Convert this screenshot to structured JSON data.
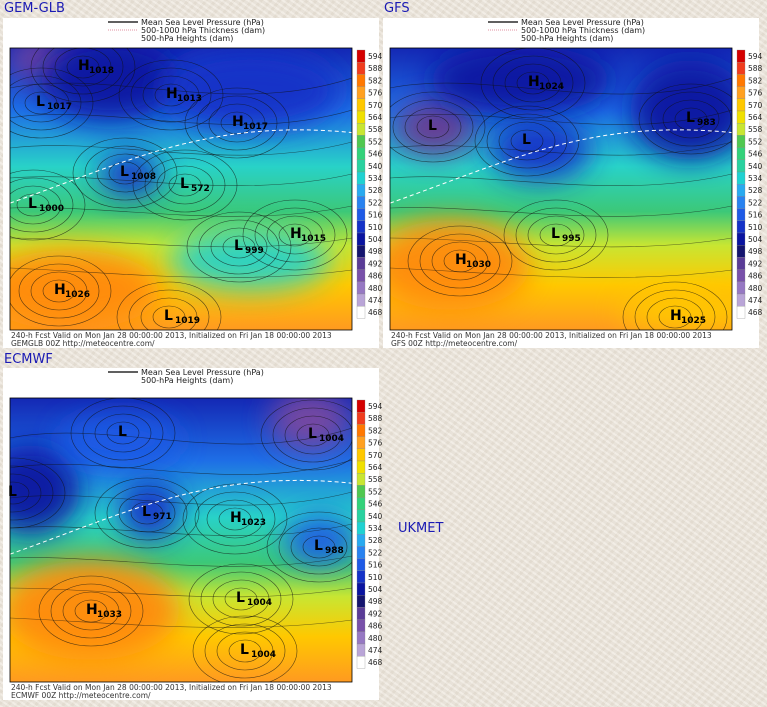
{
  "panels": [
    {
      "title": "GEM-GLB",
      "legend": [
        "Mean Sea Level Pressure (hPa)",
        "500-1000 hPa Thickness (dam)",
        "500-hPa Heights (dam)"
      ],
      "colorbar": [
        594,
        588,
        582,
        576,
        570,
        564,
        558,
        552,
        546,
        540,
        534,
        528,
        522,
        516,
        510,
        504,
        498,
        492,
        486,
        480,
        474,
        468
      ],
      "footer": [
        "240-h Fcst Valid on Mon Jan 28 00:00:00 2013, Initialized on Fri Jan 18 00:00:00 2013",
        "GEMGLB 00Z http://meteocentre.com/"
      ],
      "centers": [
        {
          "letter": "H",
          "value": 1018
        },
        {
          "letter": "L",
          "value": 1017
        },
        {
          "letter": "H",
          "value": 1013
        },
        {
          "letter": "H",
          "value": 1017
        },
        {
          "letter": "L",
          "value": 1008
        },
        {
          "letter": "L",
          "value": 572
        },
        {
          "letter": "L",
          "value": 1000
        },
        {
          "letter": "L",
          "value": 999
        },
        {
          "letter": "H",
          "value": 1015
        },
        {
          "letter": "H",
          "value": 1026
        },
        {
          "letter": "L",
          "value": 1019
        }
      ]
    },
    {
      "title": "GFS",
      "legend": [
        "Mean Sea Level Pressure (hPa)",
        "500-1000 hPa Thickness (dam)",
        "500-hPa Heights (dam)"
      ],
      "colorbar": [
        594,
        588,
        582,
        576,
        570,
        564,
        558,
        552,
        546,
        540,
        534,
        528,
        522,
        516,
        510,
        504,
        498,
        492,
        486,
        480,
        474,
        468
      ],
      "footer": [
        "240-h Fcst Valid on Mon Jan 28 00:00:00 2013, Initialized on Fri Jan 18 00:00:00 2013",
        "GFS 00Z http://meteocentre.com/"
      ],
      "centers": [
        {
          "letter": "H",
          "value": 1024
        },
        {
          "letter": "L",
          "value": 983
        },
        {
          "letter": "L"
        },
        {
          "letter": "L"
        },
        {
          "letter": "L",
          "value": 995
        },
        {
          "letter": "H",
          "value": 1030
        },
        {
          "letter": "H",
          "value": 1025
        }
      ]
    },
    {
      "title": "ECMWF",
      "legend": [
        "Mean Sea Level Pressure (hPa)",
        "500-hPa Heights (dam)"
      ],
      "colorbar": [
        594,
        588,
        582,
        576,
        570,
        564,
        558,
        552,
        546,
        540,
        534,
        528,
        522,
        516,
        510,
        504,
        498,
        492,
        486,
        480,
        474,
        468
      ],
      "footer": [
        "240-h Fcst Valid on Mon Jan 28 00:00:00 2013, Initialized on Fri Jan 18 00:00:00 2013",
        "ECMWF 00Z http://meteocentre.com/"
      ],
      "centers": [
        {
          "letter": "L"
        },
        {
          "letter": "L",
          "value": 1004
        },
        {
          "letter": "L"
        },
        {
          "letter": "L",
          "value": 971
        },
        {
          "letter": "H",
          "value": 1023
        },
        {
          "letter": "L",
          "value": 988
        },
        {
          "letter": "H",
          "value": 1033
        },
        {
          "letter": "L",
          "value": 1004
        },
        {
          "letter": "L",
          "value": 1004
        }
      ]
    }
  ],
  "missing_panel": {
    "title": "UKMET"
  }
}
